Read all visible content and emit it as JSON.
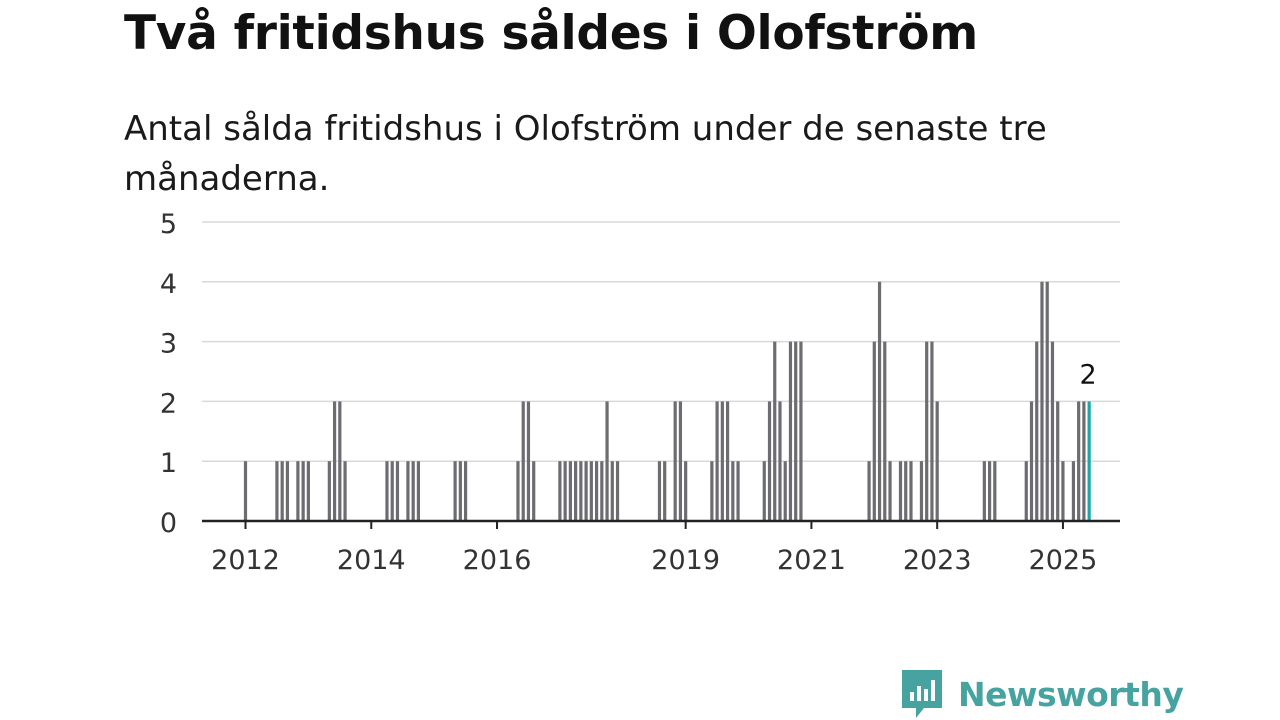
{
  "title": "Två fritidshus såldes i Olofström",
  "subtitle": "Antal sålda fritidshus i Olofström under de senaste tre månaderna.",
  "brand": {
    "name": "Newsworthy",
    "color": "#46a3a0",
    "icon": "newsworthy-logo-icon"
  },
  "chart_data": {
    "type": "bar",
    "title": "Två fritidshus såldes i Olofström",
    "subtitle": "Antal sålda fritidshus i Olofström under de senaste tre månaderna.",
    "xlabel": "",
    "ylabel": "",
    "ylim": [
      0,
      5
    ],
    "yticks": [
      0,
      1,
      2,
      3,
      4,
      5
    ],
    "xticks": [
      "2012",
      "2014",
      "2016",
      "2019",
      "2021",
      "2023",
      "2025"
    ],
    "grid": true,
    "bar_color": "#6d6c71",
    "highlight_color": "#1aa6a6",
    "highlight_label": "2",
    "series": [
      {
        "values": [
          {
            "date": "2012-01",
            "value": 1
          },
          {
            "date": "2012-07",
            "value": 1
          },
          {
            "date": "2012-08",
            "value": 1
          },
          {
            "date": "2012-09",
            "value": 1
          },
          {
            "date": "2012-11",
            "value": 1
          },
          {
            "date": "2012-12",
            "value": 1
          },
          {
            "date": "2013-01",
            "value": 1
          },
          {
            "date": "2013-05",
            "value": 1
          },
          {
            "date": "2013-06",
            "value": 2
          },
          {
            "date": "2013-07",
            "value": 2
          },
          {
            "date": "2013-08",
            "value": 1
          },
          {
            "date": "2014-04",
            "value": 1
          },
          {
            "date": "2014-05",
            "value": 1
          },
          {
            "date": "2014-06",
            "value": 1
          },
          {
            "date": "2014-08",
            "value": 1
          },
          {
            "date": "2014-09",
            "value": 1
          },
          {
            "date": "2014-10",
            "value": 1
          },
          {
            "date": "2015-05",
            "value": 1
          },
          {
            "date": "2015-06",
            "value": 1
          },
          {
            "date": "2015-07",
            "value": 1
          },
          {
            "date": "2016-05",
            "value": 1
          },
          {
            "date": "2016-06",
            "value": 2
          },
          {
            "date": "2016-07",
            "value": 2
          },
          {
            "date": "2016-08",
            "value": 1
          },
          {
            "date": "2017-01",
            "value": 1
          },
          {
            "date": "2017-02",
            "value": 1
          },
          {
            "date": "2017-03",
            "value": 1
          },
          {
            "date": "2017-04",
            "value": 1
          },
          {
            "date": "2017-05",
            "value": 1
          },
          {
            "date": "2017-06",
            "value": 1
          },
          {
            "date": "2017-07",
            "value": 1
          },
          {
            "date": "2017-08",
            "value": 1
          },
          {
            "date": "2017-09",
            "value": 1
          },
          {
            "date": "2017-10",
            "value": 2
          },
          {
            "date": "2017-11",
            "value": 1
          },
          {
            "date": "2017-12",
            "value": 1
          },
          {
            "date": "2018-08",
            "value": 1
          },
          {
            "date": "2018-09",
            "value": 1
          },
          {
            "date": "2018-11",
            "value": 2
          },
          {
            "date": "2018-12",
            "value": 2
          },
          {
            "date": "2019-01",
            "value": 1
          },
          {
            "date": "2019-06",
            "value": 1
          },
          {
            "date": "2019-07",
            "value": 2
          },
          {
            "date": "2019-08",
            "value": 2
          },
          {
            "date": "2019-09",
            "value": 2
          },
          {
            "date": "2019-10",
            "value": 1
          },
          {
            "date": "2019-11",
            "value": 1
          },
          {
            "date": "2020-04",
            "value": 1
          },
          {
            "date": "2020-05",
            "value": 2
          },
          {
            "date": "2020-06",
            "value": 3
          },
          {
            "date": "2020-07",
            "value": 2
          },
          {
            "date": "2020-08",
            "value": 1
          },
          {
            "date": "2020-09",
            "value": 3
          },
          {
            "date": "2020-10",
            "value": 3
          },
          {
            "date": "2020-11",
            "value": 3
          },
          {
            "date": "2021-12",
            "value": 1
          },
          {
            "date": "2022-01",
            "value": 3
          },
          {
            "date": "2022-02",
            "value": 4
          },
          {
            "date": "2022-03",
            "value": 3
          },
          {
            "date": "2022-04",
            "value": 1
          },
          {
            "date": "2022-06",
            "value": 1
          },
          {
            "date": "2022-07",
            "value": 1
          },
          {
            "date": "2022-08",
            "value": 1
          },
          {
            "date": "2022-10",
            "value": 1
          },
          {
            "date": "2022-11",
            "value": 3
          },
          {
            "date": "2022-12",
            "value": 3
          },
          {
            "date": "2023-01",
            "value": 2
          },
          {
            "date": "2023-10",
            "value": 1
          },
          {
            "date": "2023-11",
            "value": 1
          },
          {
            "date": "2023-12",
            "value": 1
          },
          {
            "date": "2024-06",
            "value": 1
          },
          {
            "date": "2024-07",
            "value": 2
          },
          {
            "date": "2024-08",
            "value": 3
          },
          {
            "date": "2024-09",
            "value": 4
          },
          {
            "date": "2024-10",
            "value": 4
          },
          {
            "date": "2024-11",
            "value": 3
          },
          {
            "date": "2024-12",
            "value": 2
          },
          {
            "date": "2025-01",
            "value": 1
          },
          {
            "date": "2025-03",
            "value": 1
          },
          {
            "date": "2025-04",
            "value": 2
          },
          {
            "date": "2025-05",
            "value": 2
          },
          {
            "date": "2025-06",
            "value": 2
          }
        ]
      }
    ],
    "highlight_date": "2025-06"
  }
}
